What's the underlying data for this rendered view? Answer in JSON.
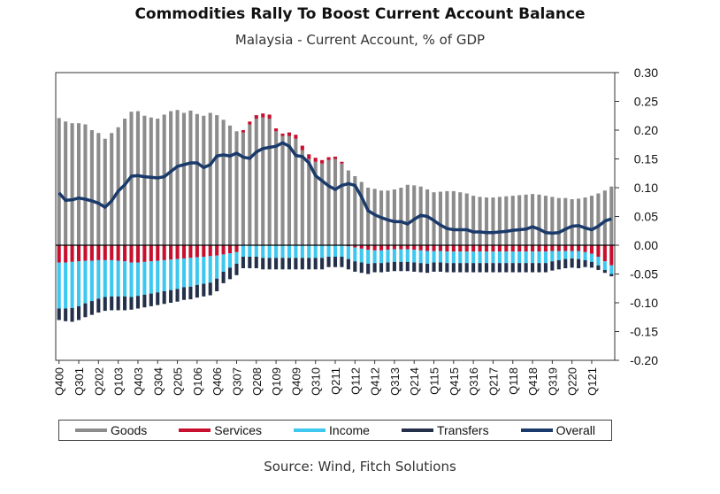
{
  "title": "Commodities Rally To Boost Current Account Balance",
  "subtitle": "Malaysia - Current Account, % of GDP",
  "source": "Source: Wind, Fitch Solutions",
  "colors": {
    "goods": "#8c8c8c",
    "services": "#c8102e",
    "income": "#3ec8f0",
    "transfers": "#243049",
    "overall": "#1a3a6b"
  },
  "chart_data": {
    "type": "bar",
    "stacked": true,
    "overlay_line": "Overall",
    "x_tick_labels": [
      "Q400",
      "Q301",
      "Q202",
      "Q103",
      "Q403",
      "Q304",
      "Q205",
      "Q106",
      "Q406",
      "Q307",
      "Q208",
      "Q109",
      "Q409",
      "Q310",
      "Q211",
      "Q112",
      "Q412",
      "Q313",
      "Q214",
      "Q115",
      "Q415",
      "Q316",
      "Q217",
      "Q118",
      "Q418",
      "Q319",
      "Q220",
      "Q121"
    ],
    "y_ticks": [
      "0.30",
      "0.25",
      "0.20",
      "0.15",
      "0.10",
      "0.05",
      "0.00",
      "-0.05",
      "-0.10",
      "-0.15",
      "-0.20"
    ],
    "ylim": [
      -0.2,
      0.3
    ],
    "y_axis_position": "right",
    "legend_position": "bottom",
    "series": [
      {
        "name": "Goods",
        "values": [
          0.221,
          0.215,
          0.212,
          0.212,
          0.21,
          0.2,
          0.195,
          0.185,
          0.195,
          0.205,
          0.22,
          0.232,
          0.233,
          0.225,
          0.222,
          0.22,
          0.227,
          0.233,
          0.235,
          0.23,
          0.234,
          0.228,
          0.225,
          0.23,
          0.226,
          0.218,
          0.208,
          0.198,
          0.196,
          0.21,
          0.22,
          0.222,
          0.22,
          0.198,
          0.19,
          0.19,
          0.185,
          0.165,
          0.15,
          0.145,
          0.142,
          0.148,
          0.15,
          0.142,
          0.13,
          0.12,
          0.11,
          0.1,
          0.098,
          0.095,
          0.095,
          0.097,
          0.1,
          0.105,
          0.104,
          0.102,
          0.097,
          0.092,
          0.093,
          0.094,
          0.094,
          0.092,
          0.09,
          0.086,
          0.084,
          0.083,
          0.083,
          0.084,
          0.085,
          0.086,
          0.087,
          0.088,
          0.089,
          0.088,
          0.086,
          0.084,
          0.082,
          0.082,
          0.08,
          0.081,
          0.083,
          0.086,
          0.09,
          0.095,
          0.102
        ]
      },
      {
        "name": "Services",
        "values": [
          -0.03,
          -0.03,
          -0.029,
          -0.028,
          -0.027,
          -0.027,
          -0.026,
          -0.026,
          -0.026,
          -0.027,
          -0.028,
          -0.03,
          -0.03,
          -0.029,
          -0.028,
          -0.027,
          -0.026,
          -0.025,
          -0.024,
          -0.023,
          -0.022,
          -0.021,
          -0.02,
          -0.019,
          -0.018,
          -0.016,
          -0.014,
          -0.012,
          0.004,
          0.005,
          0.006,
          0.007,
          0.007,
          0.005,
          0.004,
          0.006,
          0.007,
          0.008,
          0.008,
          0.007,
          0.006,
          0.005,
          0.004,
          0.003,
          -0.002,
          -0.004,
          -0.006,
          -0.008,
          -0.009,
          -0.009,
          -0.008,
          -0.007,
          -0.007,
          -0.007,
          -0.008,
          -0.009,
          -0.01,
          -0.01,
          -0.01,
          -0.011,
          -0.011,
          -0.011,
          -0.011,
          -0.011,
          -0.011,
          -0.011,
          -0.011,
          -0.011,
          -0.011,
          -0.011,
          -0.011,
          -0.011,
          -0.011,
          -0.011,
          -0.011,
          -0.01,
          -0.01,
          -0.01,
          -0.01,
          -0.01,
          -0.012,
          -0.015,
          -0.02,
          -0.028,
          -0.035
        ]
      },
      {
        "name": "Income",
        "values": [
          -0.08,
          -0.08,
          -0.08,
          -0.078,
          -0.074,
          -0.07,
          -0.067,
          -0.064,
          -0.063,
          -0.062,
          -0.061,
          -0.06,
          -0.058,
          -0.057,
          -0.056,
          -0.055,
          -0.054,
          -0.053,
          -0.052,
          -0.05,
          -0.05,
          -0.048,
          -0.047,
          -0.046,
          -0.04,
          -0.03,
          -0.025,
          -0.02,
          -0.02,
          -0.02,
          -0.02,
          -0.022,
          -0.022,
          -0.022,
          -0.022,
          -0.022,
          -0.022,
          -0.022,
          -0.022,
          -0.022,
          -0.022,
          -0.02,
          -0.02,
          -0.02,
          -0.022,
          -0.024,
          -0.024,
          -0.024,
          -0.022,
          -0.022,
          -0.022,
          -0.022,
          -0.022,
          -0.022,
          -0.022,
          -0.022,
          -0.022,
          -0.02,
          -0.02,
          -0.02,
          -0.02,
          -0.02,
          -0.02,
          -0.02,
          -0.02,
          -0.02,
          -0.02,
          -0.02,
          -0.02,
          -0.02,
          -0.02,
          -0.02,
          -0.02,
          -0.02,
          -0.02,
          -0.018,
          -0.016,
          -0.014,
          -0.013,
          -0.014,
          -0.014,
          -0.014,
          -0.015,
          -0.015,
          -0.015
        ]
      },
      {
        "name": "Transfers",
        "values": [
          -0.02,
          -0.022,
          -0.024,
          -0.024,
          -0.024,
          -0.024,
          -0.024,
          -0.024,
          -0.024,
          -0.024,
          -0.024,
          -0.022,
          -0.022,
          -0.022,
          -0.022,
          -0.022,
          -0.022,
          -0.022,
          -0.022,
          -0.022,
          -0.022,
          -0.022,
          -0.022,
          -0.022,
          -0.022,
          -0.02,
          -0.02,
          -0.02,
          -0.02,
          -0.02,
          -0.02,
          -0.02,
          -0.02,
          -0.02,
          -0.02,
          -0.02,
          -0.02,
          -0.02,
          -0.02,
          -0.02,
          -0.02,
          -0.018,
          -0.018,
          -0.018,
          -0.018,
          -0.018,
          -0.018,
          -0.018,
          -0.016,
          -0.016,
          -0.016,
          -0.016,
          -0.016,
          -0.016,
          -0.016,
          -0.016,
          -0.016,
          -0.016,
          -0.016,
          -0.016,
          -0.016,
          -0.016,
          -0.016,
          -0.016,
          -0.016,
          -0.016,
          -0.016,
          -0.016,
          -0.016,
          -0.016,
          -0.016,
          -0.016,
          -0.016,
          -0.016,
          -0.016,
          -0.016,
          -0.016,
          -0.016,
          -0.016,
          -0.016,
          -0.012,
          -0.01,
          -0.008,
          -0.005,
          -0.004
        ]
      },
      {
        "name": "Overall",
        "values": [
          0.091,
          0.078,
          0.079,
          0.082,
          0.08,
          0.077,
          0.073,
          0.066,
          0.077,
          0.094,
          0.105,
          0.12,
          0.121,
          0.119,
          0.118,
          0.117,
          0.119,
          0.128,
          0.137,
          0.14,
          0.143,
          0.143,
          0.135,
          0.14,
          0.155,
          0.157,
          0.155,
          0.16,
          0.153,
          0.151,
          0.162,
          0.168,
          0.17,
          0.172,
          0.178,
          0.172,
          0.156,
          0.154,
          0.143,
          0.121,
          0.112,
          0.103,
          0.097,
          0.104,
          0.107,
          0.104,
          0.084,
          0.06,
          0.053,
          0.048,
          0.044,
          0.041,
          0.041,
          0.037,
          0.045,
          0.052,
          0.05,
          0.043,
          0.035,
          0.029,
          0.027,
          0.027,
          0.027,
          0.023,
          0.023,
          0.022,
          0.022,
          0.023,
          0.024,
          0.026,
          0.027,
          0.028,
          0.032,
          0.028,
          0.022,
          0.021,
          0.022,
          0.028,
          0.033,
          0.034,
          0.03,
          0.027,
          0.033,
          0.042,
          0.046
        ]
      }
    ]
  }
}
